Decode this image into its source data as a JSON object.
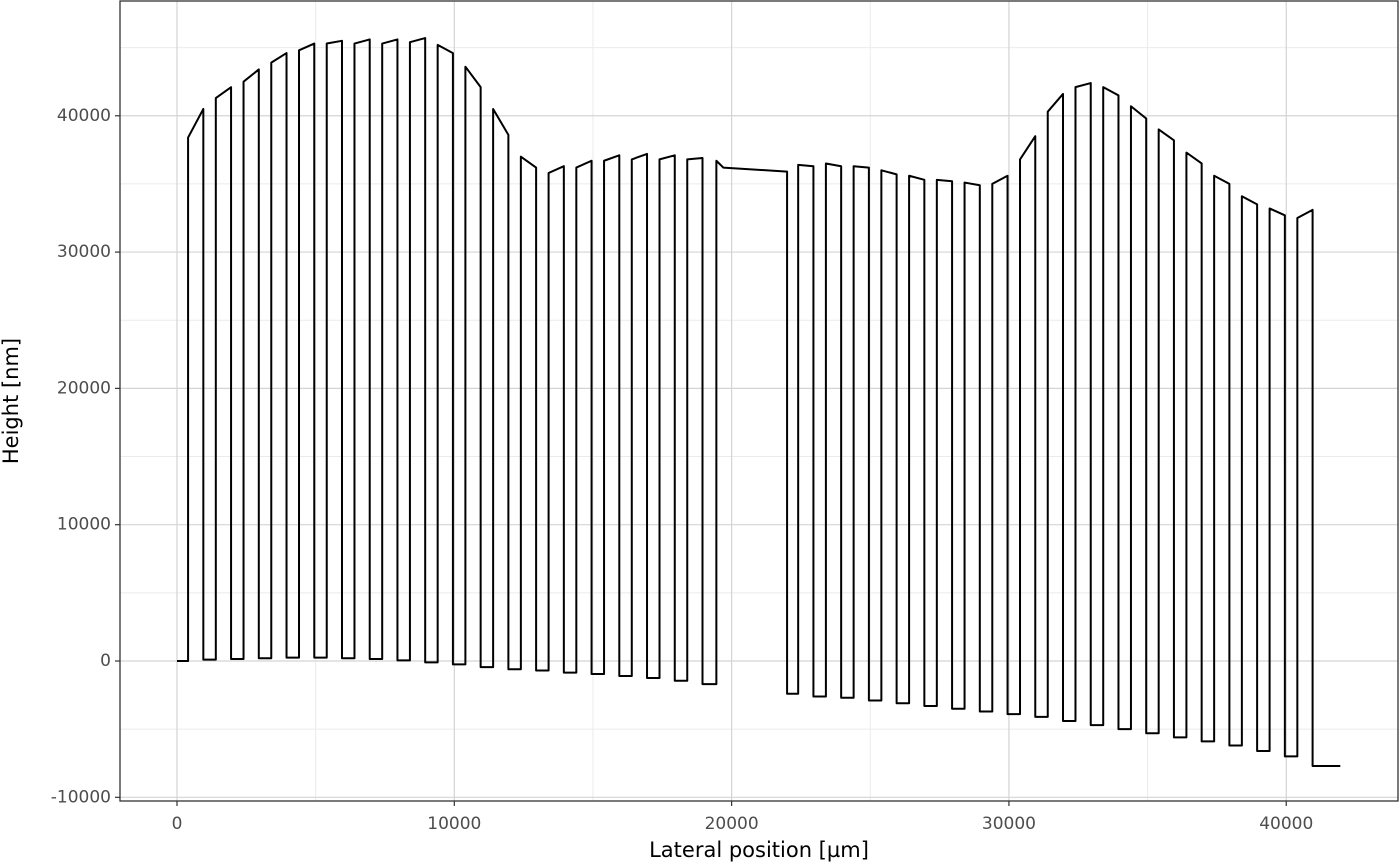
{
  "chart_data": {
    "type": "line",
    "color": "#000000",
    "x_label": "Lateral position [µm]",
    "y_label": "Height [nm]",
    "xlim": [
      -2055,
      44030
    ],
    "ylim": [
      -10270,
      48420
    ],
    "xticks": [
      0,
      10000,
      20000,
      30000,
      40000
    ],
    "yticks": [
      -10000,
      0,
      10000,
      20000,
      30000,
      40000
    ],
    "x_minor_grid": [
      5000,
      15000,
      25000,
      35000
    ],
    "y_minor_grid": [
      -5000,
      5000,
      15000,
      25000,
      35000,
      45000
    ],
    "grid": true,
    "x": [
      0,
      400,
      400,
      950,
      950,
      1400,
      1400,
      1950,
      1950,
      2400,
      2400,
      2950,
      2950,
      3400,
      3400,
      3950,
      3950,
      4400,
      4400,
      4950,
      4950,
      5400,
      5400,
      5950,
      5950,
      6400,
      6400,
      6950,
      6950,
      7400,
      7400,
      7950,
      7950,
      8400,
      8400,
      8950,
      8950,
      9400,
      9400,
      9950,
      9950,
      10400,
      10400,
      10950,
      10950,
      11400,
      11400,
      11950,
      11950,
      12400,
      12400,
      12950,
      12950,
      13400,
      13400,
      13950,
      13950,
      14400,
      14400,
      14950,
      14950,
      15400,
      15400,
      15950,
      15950,
      16400,
      16400,
      16950,
      16950,
      17400,
      17400,
      17950,
      17950,
      18400,
      18400,
      18950,
      18950,
      19450,
      19450,
      19700,
      22000,
      22000,
      22400,
      22400,
      22950,
      22950,
      23400,
      23400,
      23950,
      23950,
      24400,
      24400,
      24950,
      24950,
      25400,
      25400,
      25950,
      25950,
      26400,
      26400,
      26950,
      26950,
      27400,
      27400,
      27950,
      27950,
      28400,
      28400,
      28950,
      28950,
      29400,
      29400,
      29950,
      29950,
      30400,
      30400,
      30950,
      30950,
      31400,
      31400,
      31950,
      31950,
      32400,
      32400,
      32950,
      32950,
      33400,
      33400,
      33950,
      33950,
      34400,
      34400,
      34950,
      34950,
      35400,
      35400,
      35950,
      35950,
      36400,
      36400,
      36950,
      36950,
      37400,
      37400,
      37950,
      37950,
      38400,
      38400,
      38950,
      38950,
      39400,
      39400,
      39950,
      39950,
      40400,
      40400,
      40950,
      40950,
      41950
    ],
    "values": [
      0,
      0,
      38400,
      40500,
      100,
      100,
      41300,
      42100,
      150,
      150,
      42500,
      43400,
      200,
      200,
      43900,
      44600,
      250,
      250,
      44800,
      45300,
      250,
      250,
      45300,
      45500,
      200,
      200,
      45300,
      45600,
      150,
      150,
      45300,
      45600,
      50,
      50,
      45400,
      45700,
      -100,
      -100,
      45200,
      44600,
      -250,
      -250,
      43600,
      42100,
      -450,
      -450,
      40500,
      38600,
      -600,
      -600,
      37000,
      36200,
      -700,
      -700,
      35800,
      36300,
      -850,
      -850,
      36200,
      36700,
      -950,
      -950,
      36700,
      37100,
      -1100,
      -1100,
      36800,
      37200,
      -1250,
      -1250,
      36800,
      37100,
      -1450,
      -1450,
      36800,
      36900,
      -1700,
      -1700,
      36700,
      36200,
      35900,
      -2400,
      -2400,
      36400,
      36300,
      -2600,
      -2600,
      36500,
      36300,
      -2700,
      -2700,
      36300,
      36200,
      -2900,
      -2900,
      36000,
      35700,
      -3100,
      -3100,
      35600,
      35300,
      -3300,
      -3300,
      35300,
      35200,
      -3500,
      -3500,
      35100,
      34900,
      -3700,
      -3700,
      35000,
      35600,
      -3900,
      -3900,
      36800,
      38500,
      -4100,
      -4100,
      40300,
      41600,
      -4400,
      -4400,
      42100,
      42400,
      -4700,
      -4700,
      42100,
      41500,
      -5000,
      -5000,
      40700,
      39800,
      -5300,
      -5300,
      39000,
      38200,
      -5600,
      -5600,
      37300,
      36500,
      -5900,
      -5900,
      35600,
      35000,
      -6200,
      -6200,
      34100,
      33500,
      -6600,
      -6600,
      33200,
      32700,
      -7000,
      -7000,
      32500,
      33100,
      -7700,
      -7700
    ]
  }
}
